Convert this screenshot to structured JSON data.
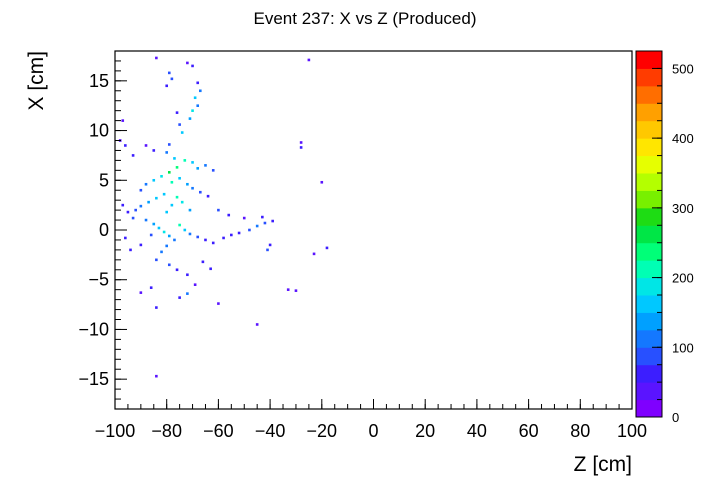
{
  "chart_data": {
    "type": "heatmap",
    "title": "Event 237: X vs Z (Produced)",
    "xlabel": "Z [cm]",
    "ylabel": "X [cm]",
    "xlim": [
      -100,
      100
    ],
    "ylim": [
      -18,
      18
    ],
    "x_ticks": [
      -100,
      -80,
      -60,
      -40,
      -20,
      0,
      20,
      40,
      60,
      80,
      100
    ],
    "y_ticks": [
      -15,
      -10,
      -5,
      0,
      5,
      10,
      15
    ],
    "z_range": [
      0,
      525
    ],
    "z_ticks": [
      0,
      100,
      200,
      300,
      400,
      500
    ],
    "colors": {
      "frame": "#000000",
      "palette": [
        "#7f00ff",
        "#5a14ff",
        "#3c1eff",
        "#2850ff",
        "#1478ff",
        "#00a0ff",
        "#00c8ff",
        "#00e6e6",
        "#00ffb4",
        "#00ff78",
        "#00e646",
        "#1edc14",
        "#78f000",
        "#b4ff00",
        "#e6ff00",
        "#ffe600",
        "#ffc800",
        "#ffa000",
        "#ff6e00",
        "#ff3c00",
        "#ff0000"
      ]
    },
    "points": [
      [
        -84,
        17.3,
        40
      ],
      [
        -70,
        16.5,
        60
      ],
      [
        -72,
        16.8,
        30
      ],
      [
        -25,
        17.1,
        40
      ],
      [
        -79,
        15.8,
        80
      ],
      [
        -78,
        15.2,
        90
      ],
      [
        -80,
        14.5,
        60
      ],
      [
        -68,
        14.8,
        70
      ],
      [
        -67,
        14.0,
        110
      ],
      [
        -69,
        13.3,
        150
      ],
      [
        -68,
        12.5,
        120
      ],
      [
        -70,
        12.0,
        180
      ],
      [
        -71,
        11.2,
        140
      ],
      [
        -76,
        11.8,
        60
      ],
      [
        -75,
        10.6,
        80
      ],
      [
        -74,
        9.8,
        160
      ],
      [
        -97,
        11.0,
        40
      ],
      [
        -98,
        9.0,
        30
      ],
      [
        -96,
        8.5,
        50
      ],
      [
        -88,
        8.5,
        40
      ],
      [
        -85,
        8.0,
        60
      ],
      [
        -93,
        7.5,
        50
      ],
      [
        -79,
        8.6,
        90
      ],
      [
        -80,
        7.8,
        120
      ],
      [
        -77,
        7.2,
        160
      ],
      [
        -73,
        7.0,
        200
      ],
      [
        -70,
        6.8,
        170
      ],
      [
        -68,
        6.2,
        130
      ],
      [
        -65,
        6.5,
        100
      ],
      [
        -62,
        6.0,
        80
      ],
      [
        -76,
        6.3,
        230
      ],
      [
        -79,
        5.8,
        260
      ],
      [
        -82,
        5.4,
        180
      ],
      [
        -85,
        5.0,
        150
      ],
      [
        -88,
        4.6,
        120
      ],
      [
        -90,
        4.0,
        90
      ],
      [
        -78,
        4.8,
        200
      ],
      [
        -75,
        5.2,
        170
      ],
      [
        -72,
        4.6,
        140
      ],
      [
        -70,
        4.2,
        110
      ],
      [
        -67,
        3.8,
        80
      ],
      [
        -64,
        3.4,
        60
      ],
      [
        -81,
        3.6,
        170
      ],
      [
        -84,
        3.2,
        150
      ],
      [
        -87,
        2.8,
        130
      ],
      [
        -90,
        2.4,
        110
      ],
      [
        -92,
        2.0,
        90
      ],
      [
        -95,
        1.8,
        70
      ],
      [
        -97,
        2.5,
        50
      ],
      [
        -93,
        1.2,
        80
      ],
      [
        -88,
        1.0,
        100
      ],
      [
        -85,
        0.6,
        140
      ],
      [
        -83,
        0.2,
        160
      ],
      [
        -81,
        -0.2,
        180
      ],
      [
        -79,
        -0.6,
        140
      ],
      [
        -77,
        -1.0,
        110
      ],
      [
        -75,
        0.5,
        210
      ],
      [
        -73,
        0.0,
        150
      ],
      [
        -71,
        -0.4,
        120
      ],
      [
        -68,
        -0.7,
        90
      ],
      [
        -65,
        -1.0,
        70
      ],
      [
        -62,
        -1.3,
        60
      ],
      [
        -58,
        -0.8,
        50
      ],
      [
        -55,
        -0.5,
        70
      ],
      [
        -52,
        -0.3,
        60
      ],
      [
        -48,
        0.0,
        80
      ],
      [
        -45,
        0.4,
        110
      ],
      [
        -42,
        0.7,
        90
      ],
      [
        -39,
        0.9,
        60
      ],
      [
        -43,
        1.3,
        50
      ],
      [
        -50,
        1.2,
        40
      ],
      [
        -56,
        1.5,
        60
      ],
      [
        -60,
        2.0,
        80
      ],
      [
        -28,
        8.8,
        40
      ],
      [
        -28,
        8.3,
        50
      ],
      [
        -20,
        4.8,
        40
      ],
      [
        -40,
        -1.5,
        60
      ],
      [
        -41,
        -2.0,
        80
      ],
      [
        -18,
        -1.8,
        50
      ],
      [
        -23,
        -2.4,
        40
      ],
      [
        -80,
        -1.6,
        120
      ],
      [
        -82,
        -2.2,
        100
      ],
      [
        -84,
        -3.0,
        80
      ],
      [
        -79,
        -3.5,
        90
      ],
      [
        -76,
        -4.0,
        60
      ],
      [
        -72,
        -4.5,
        70
      ],
      [
        -66,
        -3.2,
        50
      ],
      [
        -63,
        -3.9,
        60
      ],
      [
        -69,
        -5.5,
        40
      ],
      [
        -72,
        -6.4,
        120
      ],
      [
        -75,
        -6.8,
        70
      ],
      [
        -86,
        -5.8,
        50
      ],
      [
        -90,
        -6.3,
        40
      ],
      [
        -84,
        -7.8,
        50
      ],
      [
        -60,
        -7.4,
        40
      ],
      [
        -33,
        -6.0,
        40
      ],
      [
        -30,
        -6.1,
        40
      ],
      [
        -45,
        -9.5,
        40
      ],
      [
        -84,
        -14.7,
        40
      ],
      [
        -94,
        -2.0,
        50
      ],
      [
        -96,
        -0.8,
        60
      ],
      [
        -90,
        -1.5,
        70
      ],
      [
        -86,
        -0.5,
        90
      ],
      [
        -74,
        2.8,
        190
      ],
      [
        -76,
        3.3,
        210
      ],
      [
        -78,
        2.5,
        150
      ],
      [
        -80,
        1.8,
        170
      ],
      [
        -71,
        2.0,
        130
      ]
    ]
  }
}
